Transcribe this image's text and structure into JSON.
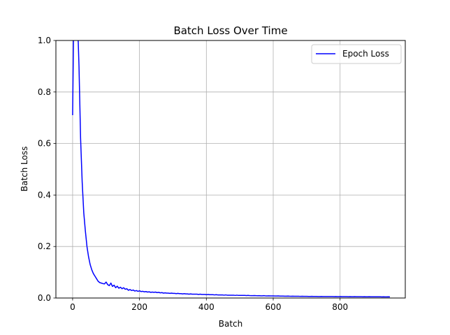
{
  "chart_data": {
    "type": "line",
    "title": "Batch Loss Over Time",
    "xlabel": "Batch",
    "ylabel": "Batch Loss",
    "xlim": [
      -50,
      995
    ],
    "ylim": [
      0,
      1.0
    ],
    "xticks": [
      0,
      200,
      400,
      600,
      800
    ],
    "yticks": [
      0.0,
      0.2,
      0.4,
      0.6,
      0.8,
      1.0
    ],
    "xtick_labels": [
      "0",
      "200",
      "400",
      "600",
      "800"
    ],
    "ytick_labels": [
      "0.0",
      "0.2",
      "0.4",
      "0.6",
      "0.8",
      "1.0"
    ],
    "grid": true,
    "legend_position": "top-right",
    "colors": {
      "series": "#0000ff",
      "grid": "#b0b0b0"
    },
    "series": [
      {
        "name": "Epoch Loss",
        "x_start": 0,
        "x_end": 949,
        "values": [
          0.71,
          1.25,
          1.4,
          1.1,
          0.9,
          0.62,
          0.45,
          0.33,
          0.26,
          0.2,
          0.16,
          0.13,
          0.11,
          0.095,
          0.085,
          0.075,
          0.065,
          0.06,
          0.058,
          0.056,
          0.055,
          0.062,
          0.052,
          0.048,
          0.058,
          0.045,
          0.05,
          0.04,
          0.046,
          0.038,
          0.042,
          0.036,
          0.04,
          0.034,
          0.036,
          0.03,
          0.033,
          0.029,
          0.031,
          0.027,
          0.029,
          0.026,
          0.028,
          0.025,
          0.026,
          0.024,
          0.025,
          0.023,
          0.024,
          0.022,
          0.023,
          0.022,
          0.023,
          0.021,
          0.022,
          0.02,
          0.021,
          0.019,
          0.02,
          0.019,
          0.019,
          0.018,
          0.019,
          0.018,
          0.018,
          0.017,
          0.018,
          0.017,
          0.017,
          0.016,
          0.017,
          0.016,
          0.016,
          0.015,
          0.016,
          0.015,
          0.015,
          0.015,
          0.015,
          0.014,
          0.015,
          0.014,
          0.014,
          0.014,
          0.013,
          0.014,
          0.013,
          0.013,
          0.013,
          0.012,
          0.013,
          0.012,
          0.012,
          0.012,
          0.012,
          0.011,
          0.012,
          0.011,
          0.011,
          0.011,
          0.011,
          0.011,
          0.01,
          0.011,
          0.01,
          0.01,
          0.01,
          0.01,
          0.01,
          0.0095,
          0.01,
          0.0095,
          0.0092,
          0.009,
          0.0095,
          0.009,
          0.0088,
          0.009,
          0.0086,
          0.0085,
          0.009,
          0.0083,
          0.0082,
          0.0085,
          0.008,
          0.008,
          0.0082,
          0.0078,
          0.0077,
          0.008,
          0.0075,
          0.0074,
          0.0076,
          0.0072,
          0.0071,
          0.0073,
          0.007,
          0.0069,
          0.0071,
          0.0068,
          0.0067,
          0.0069,
          0.0066,
          0.0065,
          0.0067,
          0.0064,
          0.0063,
          0.0065,
          0.0062,
          0.0062,
          0.0063,
          0.0061,
          0.006,
          0.0062,
          0.0059,
          0.0058,
          0.006,
          0.0058,
          0.0057,
          0.0059,
          0.0057,
          0.0056,
          0.0058,
          0.0056,
          0.0055,
          0.0057,
          0.0055,
          0.0054,
          0.0056,
          0.0054,
          0.0053,
          0.0055,
          0.0053,
          0.0052,
          0.0054,
          0.0052,
          0.0051,
          0.0053,
          0.0051,
          0.005,
          0.0052,
          0.005,
          0.0049,
          0.0051,
          0.0049,
          0.0048,
          0.005,
          0.0048,
          0.0047,
          0.0049,
          0.0047,
          0.0046,
          0.0048,
          0.0046,
          0.0045,
          0.0047,
          0.0045,
          0.0044,
          0.0046,
          0.0044
        ]
      }
    ]
  }
}
